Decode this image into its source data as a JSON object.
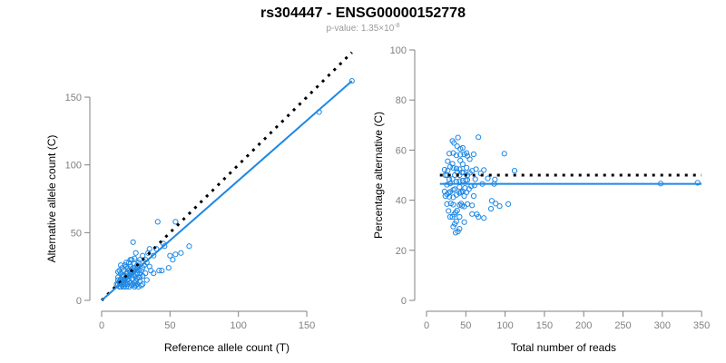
{
  "colors": {
    "points": "#1e88e5",
    "fit": "#1e88e5",
    "expected": "#000000",
    "axis": "#808080"
  },
  "title": "rs304447 - ENSG00000152778",
  "subtitle": {
    "prefix": "p-value: 1.35×10",
    "exponent": "-8"
  },
  "chart_data": [
    {
      "type": "scatter",
      "xlabel": "Reference allele count (T)",
      "ylabel": "Alternative allele count (C)",
      "xlim": [
        0,
        183
      ],
      "ylim": [
        0,
        150
      ],
      "xticks": [
        0,
        50,
        100,
        150
      ],
      "yticks": [
        0,
        50,
        100,
        150
      ],
      "expected_line": {
        "slope": 1,
        "intercept": 0,
        "style": "dotted"
      },
      "fit_line": {
        "slope": 0.885,
        "intercept": 0
      }
    },
    {
      "type": "scatter",
      "xlabel": "Total number of reads",
      "ylabel": "Percentage alternative (C)",
      "xlim": [
        0,
        350
      ],
      "ylim": [
        0,
        100
      ],
      "xticks": [
        0,
        50,
        100,
        150,
        200,
        250,
        300,
        350
      ],
      "yticks": [
        0,
        20,
        40,
        60,
        80,
        100
      ],
      "expected_line": {
        "y": 50,
        "style": "dotted"
      },
      "fit_line": {
        "y": 46.5
      }
    }
  ],
  "points_ref_alt": [
    [
      183,
      162
    ],
    [
      159,
      139
    ],
    [
      64,
      40
    ],
    [
      54,
      58
    ],
    [
      41,
      58
    ],
    [
      54,
      34
    ],
    [
      49,
      24
    ],
    [
      23,
      43
    ],
    [
      45,
      42
    ],
    [
      40,
      38
    ],
    [
      35,
      38
    ],
    [
      38,
      33
    ],
    [
      42,
      22
    ],
    [
      30,
      33
    ],
    [
      33,
      28
    ],
    [
      28,
      30
    ],
    [
      36,
      22
    ],
    [
      25,
      35
    ],
    [
      22,
      30
    ],
    [
      24,
      27
    ],
    [
      27,
      25
    ],
    [
      30,
      24
    ],
    [
      32,
      20
    ],
    [
      26,
      20
    ],
    [
      20,
      28
    ],
    [
      18,
      25
    ],
    [
      20,
      22
    ],
    [
      22,
      20
    ],
    [
      24,
      18
    ],
    [
      26,
      16
    ],
    [
      28,
      14
    ],
    [
      30,
      12
    ],
    [
      18,
      20
    ],
    [
      16,
      22
    ],
    [
      15,
      18
    ],
    [
      14,
      16
    ],
    [
      13,
      14
    ],
    [
      12,
      12
    ],
    [
      12,
      17
    ],
    [
      14,
      20
    ],
    [
      16,
      14
    ],
    [
      17,
      12
    ],
    [
      19,
      15
    ],
    [
      20,
      18
    ],
    [
      21,
      13
    ],
    [
      23,
      12
    ],
    [
      25,
      11
    ],
    [
      27,
      10
    ],
    [
      18,
      10
    ],
    [
      15,
      11
    ],
    [
      13,
      10
    ],
    [
      16,
      10
    ],
    [
      20,
      10
    ],
    [
      22,
      16
    ],
    [
      24,
      22
    ],
    [
      26,
      24
    ],
    [
      28,
      20
    ],
    [
      19,
      24
    ],
    [
      17,
      26
    ],
    [
      14,
      26
    ],
    [
      12,
      21
    ],
    [
      21,
      25
    ],
    [
      23,
      24
    ],
    [
      25,
      14
    ],
    [
      27,
      17
    ],
    [
      29,
      22
    ],
    [
      31,
      26
    ],
    [
      35,
      25
    ],
    [
      38,
      20
    ],
    [
      44,
      22
    ],
    [
      50,
      33
    ],
    [
      46,
      40
    ],
    [
      52,
      30
    ],
    [
      58,
      35
    ],
    [
      33,
      15
    ],
    [
      29,
      11
    ],
    [
      24,
      13
    ],
    [
      19,
      12
    ],
    [
      17,
      16
    ],
    [
      15,
      14
    ],
    [
      13,
      13
    ],
    [
      11,
      12
    ],
    [
      14,
      12
    ],
    [
      16,
      18
    ],
    [
      18,
      18
    ],
    [
      20,
      14
    ],
    [
      22,
      11
    ],
    [
      24,
      10
    ],
    [
      26,
      12
    ],
    [
      28,
      17
    ],
    [
      19,
      20
    ],
    [
      21,
      21
    ],
    [
      23,
      19
    ],
    [
      25,
      19
    ],
    [
      27,
      22
    ],
    [
      15,
      24
    ],
    [
      13,
      22
    ],
    [
      18,
      28
    ],
    [
      21,
      30
    ],
    [
      24,
      31
    ],
    [
      27,
      28
    ],
    [
      17,
      13
    ],
    [
      20,
      16
    ],
    [
      22,
      23
    ],
    [
      26,
      26
    ],
    [
      12,
      15
    ],
    [
      14,
      10
    ],
    [
      16,
      12
    ],
    [
      30,
      18
    ],
    [
      32,
      30
    ],
    [
      34,
      35
    ]
  ]
}
